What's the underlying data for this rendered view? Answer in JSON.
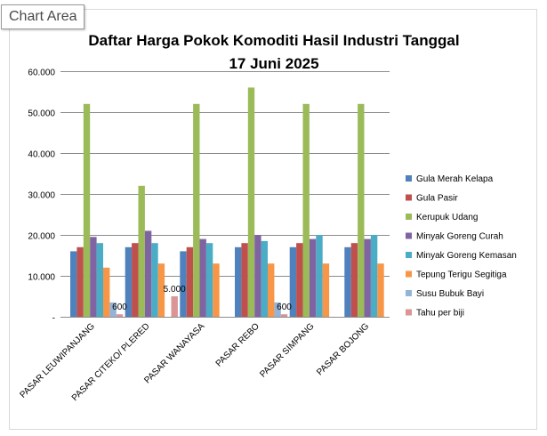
{
  "tooltip": "Chart Area",
  "chart_data": {
    "type": "bar",
    "title_line1": "Daftar Harga Pokok Komoditi Hasil Industri Tanggal",
    "title_line2": "17 Juni 2025",
    "categories": [
      "PASAR LEUWIPANJANG",
      "PASAR CITEKO/ PLERED",
      "PASAR WANAYASA",
      "PASAR REBO",
      "PASAR SIMPANG",
      "PASAR BOJONG"
    ],
    "yticks": [
      "-",
      "10.000",
      "20.000",
      "30.000",
      "40.000",
      "50.000",
      "60.000"
    ],
    "ylim": [
      0,
      60000
    ],
    "grid": true,
    "legend_position": "right",
    "series": [
      {
        "name": "Gula Merah Kelapa",
        "color": "#4F81BD",
        "values": [
          16000,
          17000,
          16000,
          17000,
          17000,
          17000
        ]
      },
      {
        "name": "Gula Pasir",
        "color": "#C0504D",
        "values": [
          17000,
          18000,
          17000,
          18000,
          18000,
          18000
        ]
      },
      {
        "name": "Kerupuk Udang",
        "color": "#9BBB59",
        "values": [
          52000,
          32000,
          52000,
          56000,
          52000,
          52000
        ]
      },
      {
        "name": "Minyak Goreng Curah",
        "color": "#8064A2",
        "values": [
          19500,
          21000,
          19000,
          20000,
          19000,
          19000
        ]
      },
      {
        "name": "Minyak Goreng  Kemasan",
        "color": "#4BACC6",
        "values": [
          18000,
          18000,
          18000,
          18500,
          20000,
          20000
        ]
      },
      {
        "name": "Tepung Terigu Segitiga",
        "color": "#F79646",
        "values": [
          12000,
          13000,
          13000,
          13000,
          13000,
          13000
        ]
      },
      {
        "name": "Susu Bubuk Bayi",
        "color": "#95B3D7",
        "values": [
          3500,
          0,
          0,
          3500,
          0,
          0
        ]
      },
      {
        "name": "Tahu per biji",
        "color": "#D99694",
        "values": [
          600,
          5000,
          0,
          600,
          0,
          0
        ]
      }
    ],
    "data_labels": [
      {
        "category_index": 0,
        "series_index": 7,
        "text": "600"
      },
      {
        "category_index": 1,
        "series_index": 7,
        "text": "5.000"
      },
      {
        "category_index": 3,
        "series_index": 7,
        "text": "600"
      }
    ]
  }
}
